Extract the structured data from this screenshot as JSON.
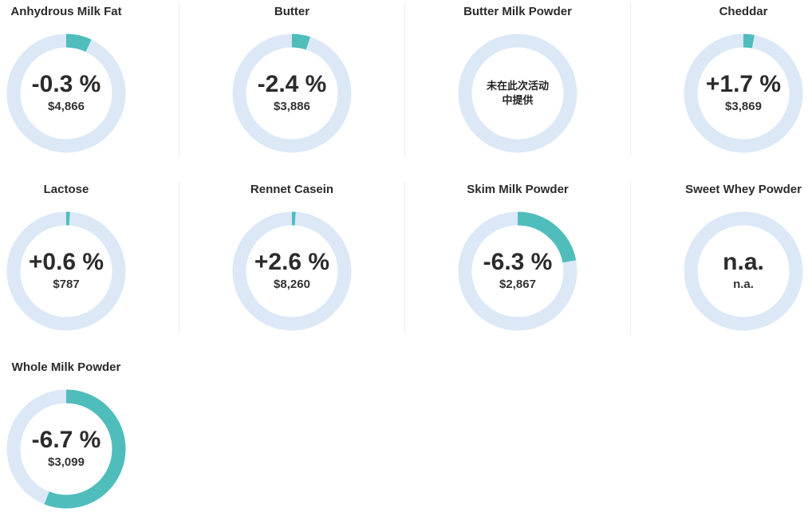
{
  "colors": {
    "ring_bg": "#dce8f6",
    "ring_fg": "#4fbdbc"
  },
  "chart_data": {
    "type": "donut-grid",
    "products": [
      {
        "name": "Anhydrous Milk Fat",
        "change": "-0.3 %",
        "price": "$4,866",
        "arc_fraction": 0.07,
        "note": ""
      },
      {
        "name": "Butter",
        "change": "-2.4 %",
        "price": "$3,886",
        "arc_fraction": 0.05,
        "note": ""
      },
      {
        "name": "Butter Milk Powder",
        "change": "",
        "price": "",
        "arc_fraction": 0,
        "note": "未在此次活动中提供"
      },
      {
        "name": "Cheddar",
        "change": "+1.7 %",
        "price": "$3,869",
        "arc_fraction": 0.03,
        "note": ""
      },
      {
        "name": "Lactose",
        "change": "+0.6 %",
        "price": "$787",
        "arc_fraction": 0.01,
        "note": ""
      },
      {
        "name": "Rennet Casein",
        "change": "+2.6 %",
        "price": "$8,260",
        "arc_fraction": 0.01,
        "note": ""
      },
      {
        "name": "Skim Milk Powder",
        "change": "-6.3 %",
        "price": "$2,867",
        "arc_fraction": 0.22,
        "note": ""
      },
      {
        "name": "Sweet Whey Powder",
        "change": "n.a.",
        "price": "n.a.",
        "arc_fraction": 0,
        "note": ""
      },
      {
        "name": "Whole Milk Powder",
        "change": "-6.7 %",
        "price": "$3,099",
        "arc_fraction": 0.56,
        "note": ""
      }
    ]
  }
}
